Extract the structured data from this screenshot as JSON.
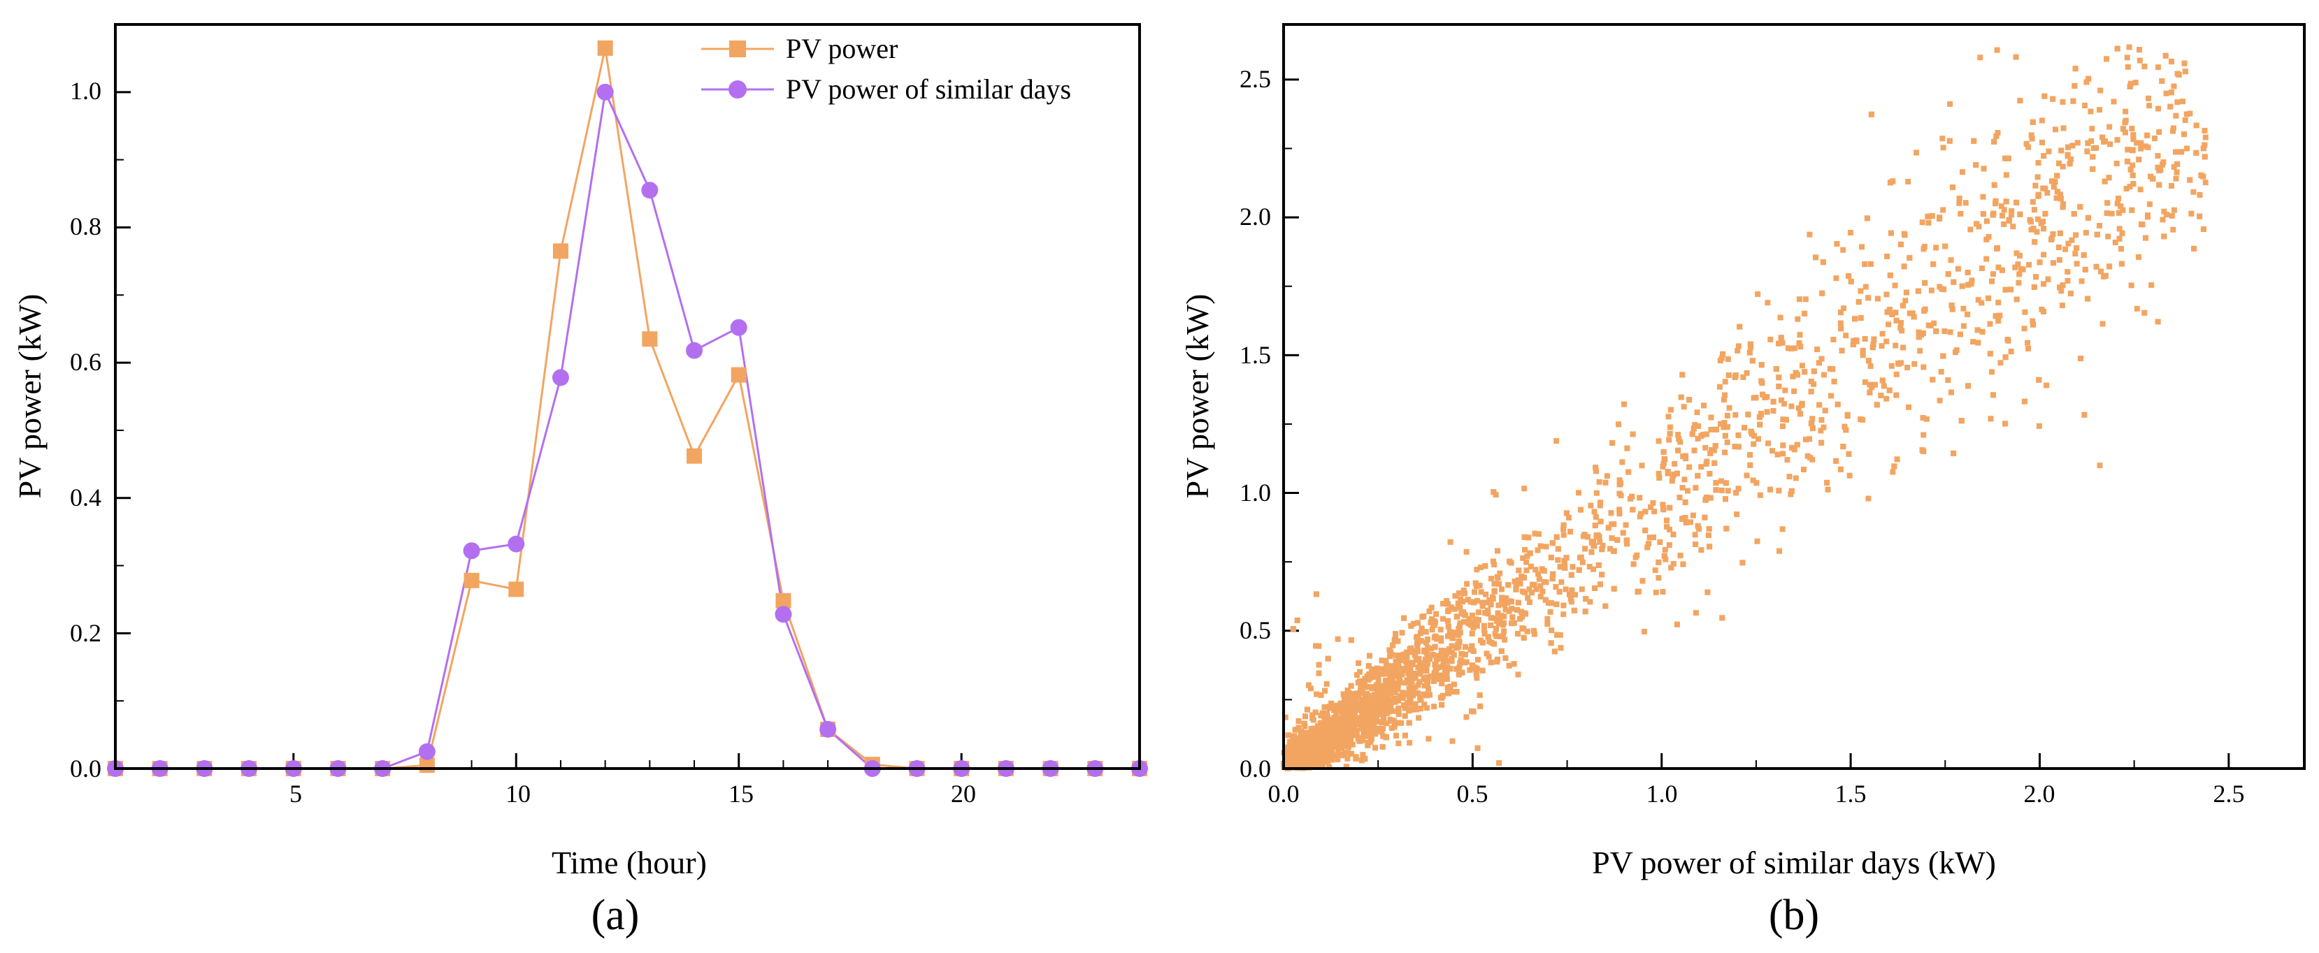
{
  "chart_data": [
    {
      "panel": "(a)",
      "type": "line",
      "xlabel": "Time (hour)",
      "ylabel": "PV power (kW)",
      "xlim": [
        1,
        24
      ],
      "ylim": [
        0,
        1.1
      ],
      "xticks": [
        5,
        10,
        15,
        20
      ],
      "yticks": [
        0.0,
        0.2,
        0.4,
        0.6,
        0.8,
        1.0
      ],
      "x": [
        1,
        2,
        3,
        4,
        5,
        6,
        7,
        8,
        9,
        10,
        11,
        12,
        13,
        14,
        15,
        16,
        17,
        18,
        19,
        20,
        21,
        22,
        23,
        24
      ],
      "series": [
        {
          "name": "PV power",
          "color": "#f2a561",
          "marker": "square",
          "values": [
            0,
            0,
            0,
            0,
            0,
            0,
            0,
            0.005,
            0.278,
            0.265,
            0.765,
            1.065,
            0.635,
            0.462,
            0.582,
            0.248,
            0.058,
            0.006,
            0,
            0,
            0,
            0,
            0,
            0
          ]
        },
        {
          "name": "PV power of similar days",
          "color": "#b36ff0",
          "marker": "circle",
          "values": [
            0,
            0,
            0,
            0,
            0,
            0,
            0,
            0.025,
            0.322,
            0.332,
            0.578,
            1.0,
            0.855,
            0.618,
            0.652,
            0.228,
            0.058,
            0,
            0,
            0,
            0,
            0,
            0,
            0
          ]
        }
      ],
      "legend_position": "top-right"
    },
    {
      "panel": "(b)",
      "type": "scatter",
      "xlabel": "PV power of similar days (kW)",
      "ylabel": "PV power (kW)",
      "xlim": [
        0,
        2.7
      ],
      "ylim": [
        0,
        2.7
      ],
      "xticks": [
        0.0,
        0.5,
        1.0,
        1.5,
        2.0,
        2.5
      ],
      "yticks": [
        0.0,
        0.5,
        1.0,
        1.5,
        2.0,
        2.5
      ],
      "color": "#f2a561",
      "marker": "square",
      "point_count": 4200,
      "relationship": "positive correlation, points spread around y = x with dispersion increasing with x"
    }
  ]
}
